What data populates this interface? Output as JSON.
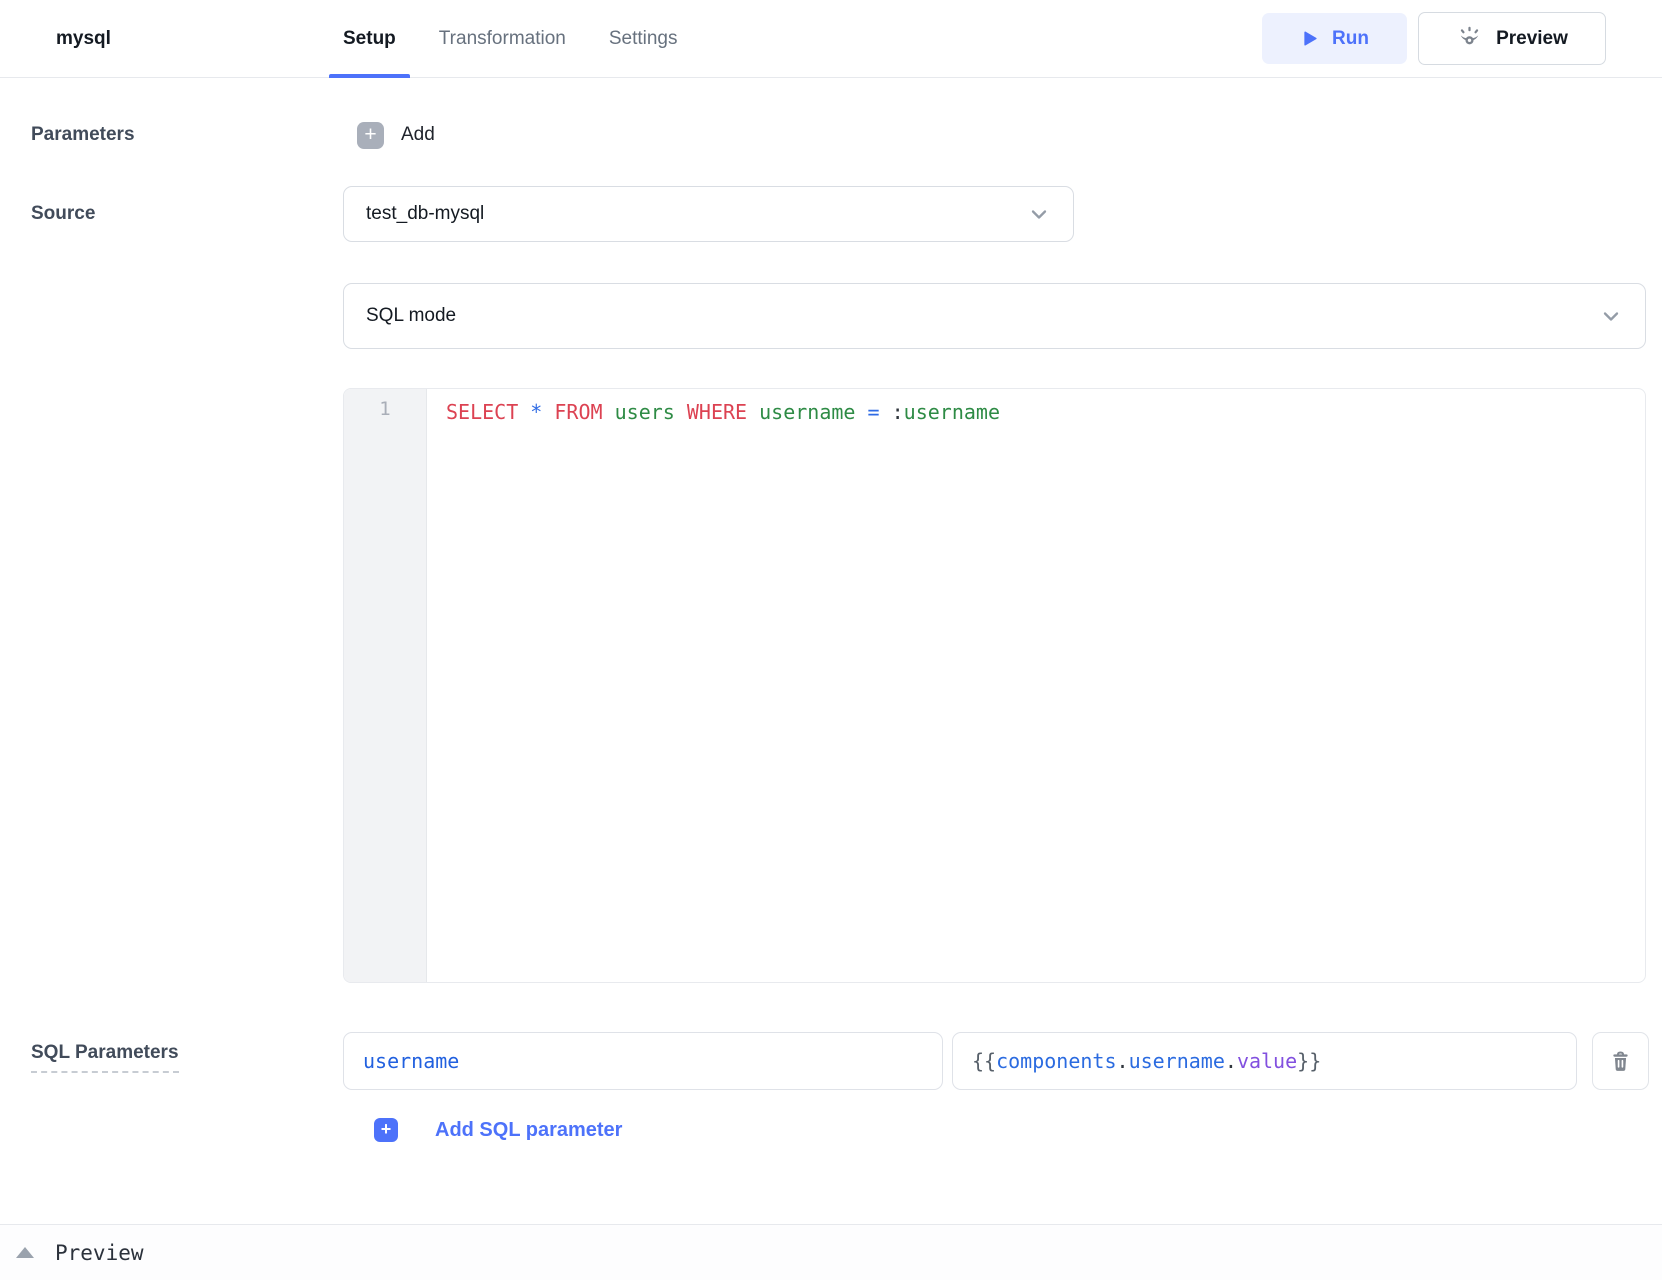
{
  "colors": {
    "accent_blue": "#4d72fa",
    "accent_light_bg": "#edf1fe",
    "keyword_red": "#dc4252",
    "identifier_green": "#2e8b45",
    "operator_blue": "#2f6be4",
    "variable_blue": "#2b6be0",
    "property_purple": "#8250df",
    "param_name_blue": "#2160df"
  },
  "icons": {
    "run": "play-icon",
    "preview": "eye-icon",
    "add": "plus-icon",
    "dropdown": "chevron-down-icon",
    "delete": "trash-icon",
    "collapse": "caret-up-icon"
  },
  "header": {
    "title": "mysql",
    "tabs": [
      {
        "label": "Setup",
        "active": true
      },
      {
        "label": "Transformation",
        "active": false
      },
      {
        "label": "Settings",
        "active": false
      }
    ],
    "run_button": {
      "label": "Run"
    },
    "preview_button": {
      "label": "Preview"
    }
  },
  "setup_panel": {
    "parameters": {
      "label": "Parameters",
      "add_button": {
        "label": "Add"
      }
    },
    "source": {
      "label": "Source",
      "selected": "test_db-mysql"
    },
    "mode_select": {
      "selected": "SQL mode"
    },
    "editor": {
      "line_number": "1",
      "code_text": "SELECT * FROM users WHERE username = :username",
      "tokens": [
        {
          "text": "SELECT",
          "type": "keyword"
        },
        {
          "text": " ",
          "type": "plain"
        },
        {
          "text": "*",
          "type": "operator"
        },
        {
          "text": " ",
          "type": "plain"
        },
        {
          "text": "FROM",
          "type": "keyword"
        },
        {
          "text": " ",
          "type": "plain"
        },
        {
          "text": "users",
          "type": "identifier"
        },
        {
          "text": " ",
          "type": "plain"
        },
        {
          "text": "WHERE",
          "type": "keyword"
        },
        {
          "text": " ",
          "type": "plain"
        },
        {
          "text": "username",
          "type": "identifier"
        },
        {
          "text": " ",
          "type": "plain"
        },
        {
          "text": "=",
          "type": "operator"
        },
        {
          "text": " ",
          "type": "plain"
        },
        {
          "text": ":",
          "type": "punct"
        },
        {
          "text": "username",
          "type": "identifier"
        }
      ]
    },
    "sql_parameters": {
      "label": "SQL Parameters",
      "rows": [
        {
          "name": "username",
          "value_text": "{{components.username.value}}",
          "value_tokens": [
            {
              "text": "{{",
              "type": "brace"
            },
            {
              "text": "components",
              "type": "variable"
            },
            {
              "text": ".",
              "type": "punct"
            },
            {
              "text": "username",
              "type": "variable"
            },
            {
              "text": ".",
              "type": "punct"
            },
            {
              "text": "value",
              "type": "property"
            },
            {
              "text": "}}",
              "type": "brace"
            }
          ]
        }
      ],
      "add_button": {
        "label": "Add SQL parameter"
      }
    }
  },
  "footer": {
    "label": "Preview"
  }
}
